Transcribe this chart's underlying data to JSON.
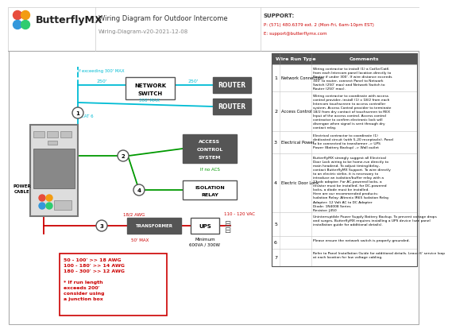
{
  "title": "Wiring Diagram for Outdoor Intercome",
  "subtitle": "Wiring-Diagram-v20-2021-12-08",
  "logo_text": "ButterflyMX",
  "support_line1": "SUPPORT:",
  "support_line2": "P: (571) 480.6379 ext. 2 (Mon-Fri, 6am-10pm EST)",
  "support_line3": "E: support@butterflymx.com",
  "bg_color": "#ffffff",
  "cyan_color": "#00bcd4",
  "green_color": "#009900",
  "red_color": "#cc0000",
  "dark_box": "#555555",
  "table_rows": [
    {
      "num": "1",
      "type": "Network Connection",
      "comment": "Wiring contractor to install (1) a Cat5e/Cat6\nfrom each Intercom panel location directly to\nRouter if under 300'. If wire distance exceeds\n300' to router, connect Panel to Network\nSwitch (250' max) and Network Switch to\nRouter (250' max)."
    },
    {
      "num": "2",
      "type": "Access Control",
      "comment": "Wiring contractor to coordinate with access\ncontrol provider, install (1) x 18/2 from each\nIntercom touchscreen to access controller\nsystem. Access Control provider to terminate\n18/2 from dry contact of touchscreen to REX\nInput of the access control. Access control\ncontractor to confirm electronic lock will\ndisengae when signal is sent through dry\ncontact relay."
    },
    {
      "num": "3",
      "type": "Electrical Power",
      "comment": "Electrical contractor to coordinate (1)\ndedicated circuit (with 5-20 receptacle). Panel\nto be connected to transformer -> UPS\nPower (Battery Backup) -> Wall outlet"
    },
    {
      "num": "4",
      "type": "Electric Door Lock",
      "comment": "ButterflyMX strongly suggest all Electrical\nDoor Lock wiring to be home-run directly to\nmain headend. To adjust timing/delay,\ncontact ButterflyMX Support. To wire directly\nto an electric strike, it is necessary to\nintroduce an isolation/buffer relay with a\n12vdc adapter. For AC-powered locks, a\nresistor must be installed; for DC-powered\nlocks, a diode must be installed.\nHere are our recommended products:\nIsolation Relay: Altronix IR65 Isolation Relay\nAdapter: 12 Volt AC to DC Adapter\nDiode: 1N4008 Series\nResistor: J450"
    },
    {
      "num": "5",
      "type": "",
      "comment": "Uninterruptible Power Supply Battery Backup. To prevent voltage drops\nand surges, ButterflyMX requires installing a UPS device (see panel\ninstallation guide for additional details)."
    },
    {
      "num": "6",
      "type": "",
      "comment": "Please ensure the network switch is properly grounded."
    },
    {
      "num": "7",
      "type": "",
      "comment": "Refer to Panel Installation Guide for additional details. Leave 6' service loop\nat each location for low voltage cabling."
    }
  ]
}
